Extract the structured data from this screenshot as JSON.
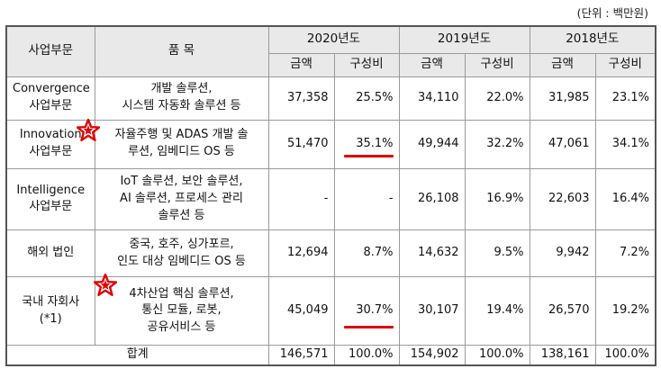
{
  "unit_note": "(단위 : 백만원)",
  "header": {
    "segment": "사업부문",
    "product": "품  목",
    "years": [
      "2020년도",
      "2019년도",
      "2018년도"
    ],
    "amount": "금액",
    "ratio": "구성비"
  },
  "rows": [
    {
      "segment": [
        "Convergence",
        "사업부문"
      ],
      "product": [
        "개발 솔루션,",
        "시스템 자동화 솔루션 등"
      ],
      "values": [
        "37,358",
        "25.5%",
        "34,110",
        "22.0%",
        "31,985",
        "23.1%"
      ]
    },
    {
      "segment": [
        "Innovation",
        "사업부문"
      ],
      "product": [
        "자율주행 및 ADAS 개발 솔",
        "루션, 임베디드 OS 등"
      ],
      "values": [
        "51,470",
        "35.1%",
        "49,944",
        "32.2%",
        "47,061",
        "34.1%"
      ]
    },
    {
      "segment": [
        "Intelligence",
        "사업부문"
      ],
      "product": [
        "IoT 솔루션, 보안 솔루션,",
        "AI 솔루션, 프로세스 관리",
        "솔루션 등"
      ],
      "values": [
        "-",
        "-",
        "26,108",
        "16.9%",
        "22,603",
        "16.4%"
      ]
    },
    {
      "segment": [
        "해외 법인"
      ],
      "product": [
        "중국, 호주, 싱가포르,",
        "인도 대상 임베디드 OS 등"
      ],
      "values": [
        "12,694",
        "8.7%",
        "14,632",
        "9.5%",
        "9,942",
        "7.2%"
      ]
    },
    {
      "segment": [
        "국내 자회사",
        "(*1)"
      ],
      "product": [
        "4차산업 핵심 솔루션,",
        "통신 모듈, 로봇,",
        "공유서비스 등"
      ],
      "values": [
        "45,049",
        "30.7%",
        "30,107",
        "19.4%",
        "26,570",
        "19.2%"
      ]
    }
  ],
  "total": {
    "label": "합계",
    "values": [
      "146,571",
      "100.0%",
      "154,902",
      "100.0%",
      "138,161",
      "100.0%"
    ]
  },
  "colors": {
    "header_bg": "#e9e9e9",
    "annotation_red": "#e00000"
  },
  "annotations": [
    "star-icon",
    "red-underline"
  ]
}
